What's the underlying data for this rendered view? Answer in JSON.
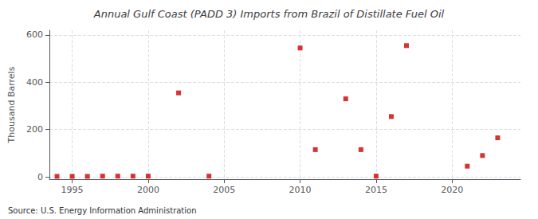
{
  "chart_data": {
    "type": "scatter",
    "title": "Annual Gulf Coast (PADD 3) Imports from Brazil of Distillate Fuel Oil",
    "ylabel": "Thousand Barrels",
    "annotation": "Source: U.S. Energy Information Administration",
    "x": [
      1994,
      1995,
      1996,
      1997,
      1998,
      1999,
      2000,
      2002,
      2004,
      2010,
      2011,
      2013,
      2014,
      2015,
      2016,
      2017,
      2021,
      2022,
      2023
    ],
    "values": [
      2,
      2,
      2,
      3,
      3,
      3,
      3,
      355,
      3,
      545,
      115,
      330,
      115,
      3,
      255,
      555,
      45,
      90,
      165
    ],
    "color": "#cc0000",
    "marker": "square",
    "xlim": [
      1993.5,
      2024.5
    ],
    "xticks": [
      1995,
      2000,
      2005,
      2010,
      2015,
      2020
    ],
    "ylim": [
      -10,
      620
    ],
    "yticks": [
      0,
      200,
      400,
      600
    ],
    "grid": true
  }
}
